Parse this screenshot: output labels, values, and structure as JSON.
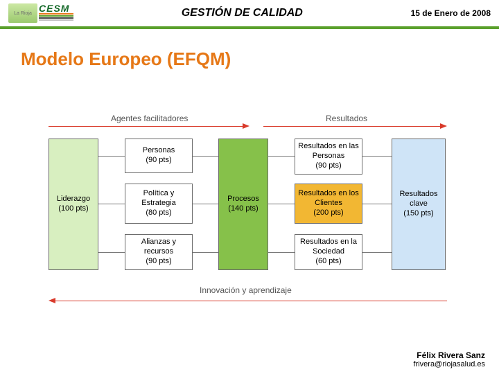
{
  "colors": {
    "header_border": "#5aa02c",
    "title_color": "#e67817",
    "arrow_top": "#d93a2b",
    "arrow_bottom": "#d93a2b",
    "connector": "#777777",
    "box_border": "#6a6a6a",
    "box_light_green": "#d8efc0",
    "box_green": "#86c14a",
    "box_yellow": "#f2b733",
    "box_light_blue": "#cfe4f7",
    "box_white": "#ffffff",
    "section_text": "#555555",
    "bottom_label": "#555555"
  },
  "header": {
    "logo_name": "CESM",
    "logo_sub": "La Rioja",
    "title": "GESTIÓN DE CALIDAD",
    "date": "15 de Enero de 2008"
  },
  "slide_title": "Modelo Europeo (EFQM)",
  "sections": {
    "left": "Agentes facilitadores",
    "right": "Resultados",
    "bottom": "Innovación y aprendizaje"
  },
  "boxes": {
    "liderazgo": {
      "name": "Liderazgo",
      "pts": "(100 pts)",
      "fill": "box_light_green"
    },
    "personas": {
      "name": "Personas",
      "pts": "(90 pts)",
      "fill": "box_white"
    },
    "politica": {
      "name": "Política y Estrategia",
      "pts": "(80 pts)",
      "fill": "box_white"
    },
    "alianzas": {
      "name": "Alianzas y recursos",
      "pts": "(90 pts)",
      "fill": "box_white"
    },
    "procesos": {
      "name": "Procesos",
      "pts": "(140 pts)",
      "fill": "box_green"
    },
    "r_personas": {
      "name": "Resultados en las Personas",
      "pts": "(90 pts)",
      "fill": "box_white"
    },
    "r_clientes": {
      "name": "Resultados en los Clientes",
      "pts": "(200 pts)",
      "fill": "box_yellow"
    },
    "r_sociedad": {
      "name": "Resultados en la Sociedad",
      "pts": "(60 pts)",
      "fill": "box_white"
    },
    "r_clave": {
      "name": "Resultados clave",
      "pts": "(150 pts)",
      "fill": "box_light_blue"
    }
  },
  "footer": {
    "author": "Félix Rivera Sanz",
    "email": "frivera@riojasalud.es"
  }
}
